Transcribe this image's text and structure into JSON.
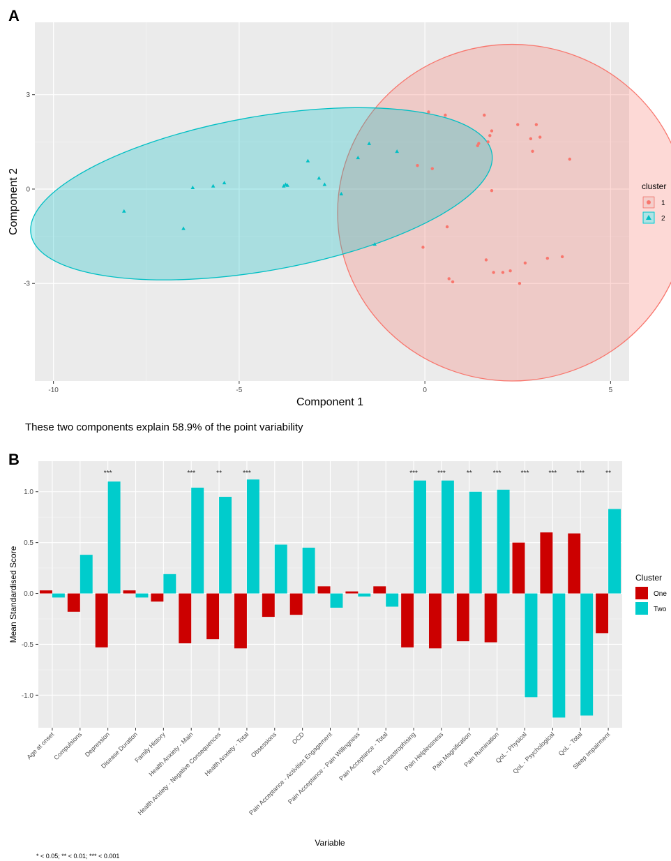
{
  "panel_a_letter": "A",
  "panel_b_letter": "B",
  "caption_a": "These two components explain 58.9% of the point variability",
  "footnote_b": "* < 0.05; ** < 0.01; *** < 0.001",
  "chart_data": [
    {
      "type": "scatter",
      "xlabel": "Component 1",
      "ylabel": "Component 2",
      "xlim": [
        -10.5,
        5.5
      ],
      "ylim": [
        -6.1,
        5.3
      ],
      "xticks": [
        -10,
        -5,
        0,
        5
      ],
      "xtick_labels": [
        "-10",
        "-5",
        "0",
        "5"
      ],
      "yticks": [
        -3,
        0,
        3
      ],
      "ytick_labels": [
        "-3",
        "0",
        "3"
      ],
      "grid": true,
      "legend": {
        "title": "cluster",
        "position": "right"
      },
      "series": [
        {
          "name": "1",
          "color": "#f8766d",
          "marker": "circle",
          "ellipse": {
            "cx": 2.35,
            "cy": -0.75,
            "rx": 4.7,
            "ry": 5.35,
            "angle": 0
          },
          "points": [
            [
              0.1,
              2.45
            ],
            [
              0.55,
              2.35
            ],
            [
              1.6,
              2.35
            ],
            [
              1.8,
              1.85
            ],
            [
              1.75,
              1.7
            ],
            [
              1.7,
              1.5
            ],
            [
              1.45,
              1.45
            ],
            [
              1.42,
              1.38
            ],
            [
              2.5,
              2.05
            ],
            [
              3.0,
              2.05
            ],
            [
              2.85,
              1.6
            ],
            [
              3.1,
              1.65
            ],
            [
              2.9,
              1.2
            ],
            [
              3.9,
              0.95
            ],
            [
              -0.2,
              0.75
            ],
            [
              0.2,
              0.65
            ],
            [
              1.8,
              -0.05
            ],
            [
              0.6,
              -1.2
            ],
            [
              -0.05,
              -1.85
            ],
            [
              1.65,
              -2.25
            ],
            [
              1.85,
              -2.65
            ],
            [
              2.1,
              -2.65
            ],
            [
              2.3,
              -2.6
            ],
            [
              2.7,
              -2.35
            ],
            [
              3.3,
              -2.2
            ],
            [
              3.7,
              -2.15
            ],
            [
              0.65,
              -2.85
            ],
            [
              0.75,
              -2.95
            ],
            [
              2.55,
              -3.0
            ]
          ]
        },
        {
          "name": "2",
          "color": "#00bfc4",
          "marker": "triangle",
          "ellipse": {
            "cx": -4.4,
            "cy": -0.15,
            "rx": 6.3,
            "ry": 2.45,
            "angle": -10
          },
          "points": [
            [
              -8.1,
              -0.7
            ],
            [
              -6.5,
              -1.25
            ],
            [
              -6.25,
              0.05
            ],
            [
              -5.7,
              0.1
            ],
            [
              -5.4,
              0.2
            ],
            [
              -3.75,
              0.15
            ],
            [
              -3.8,
              0.1
            ],
            [
              -3.7,
              0.12
            ],
            [
              -3.15,
              0.9
            ],
            [
              -2.85,
              0.35
            ],
            [
              -2.7,
              0.15
            ],
            [
              -2.25,
              -0.15
            ],
            [
              -1.8,
              1.0
            ],
            [
              -1.5,
              1.45
            ],
            [
              -0.75,
              1.2
            ],
            [
              -1.35,
              -1.75
            ]
          ]
        }
      ]
    },
    {
      "type": "bar",
      "xlabel": "Variable",
      "ylabel": "Mean Standardised Score",
      "ylim": [
        -1.32,
        1.3
      ],
      "yticks": [
        -1.0,
        -0.5,
        0.0,
        0.5,
        1.0
      ],
      "ytick_labels": [
        "-1.0",
        "-0.5",
        "0.0",
        "0.5",
        "1.0"
      ],
      "grid": true,
      "legend": {
        "title": "Cluster",
        "position": "right"
      },
      "categories": [
        "Age at onset",
        "Compulsions",
        "Depression",
        "Disease Duration",
        "Family History",
        "Health Anxiety - Main",
        "Health Anxiety - Negative Consequences",
        "Health Anxiety - Total",
        "Obsessions",
        "OCD",
        "Pain Acceptance - Activities Engagement",
        "Pain Acceptance - Pain Willingness",
        "Pain Acceptance - Total",
        "Pain Catastrophising",
        "Pain Helplessness",
        "Pain Magnification",
        "Pain Rumination",
        "QoL - Physical",
        "QoL - Psychological",
        "QoL - Total",
        "Sleep Impairment"
      ],
      "series": [
        {
          "name": "One",
          "color": "#cc0000",
          "values": [
            0.03,
            -0.18,
            -0.53,
            0.03,
            -0.08,
            -0.49,
            -0.45,
            -0.54,
            -0.23,
            -0.21,
            0.07,
            0.02,
            0.07,
            -0.53,
            -0.54,
            -0.47,
            -0.48,
            0.5,
            0.6,
            0.59,
            -0.39
          ]
        },
        {
          "name": "Two",
          "color": "#00cccc",
          "values": [
            -0.04,
            0.38,
            1.1,
            -0.04,
            0.19,
            1.04,
            0.95,
            1.12,
            0.48,
            0.45,
            -0.14,
            -0.03,
            -0.13,
            1.11,
            1.11,
            1.0,
            1.02,
            -1.02,
            -1.22,
            -1.2,
            0.83
          ]
        }
      ],
      "significance": [
        "",
        "",
        "***",
        "",
        "",
        "***",
        "**",
        "***",
        "",
        "",
        "",
        "",
        "",
        "***",
        "***",
        "**",
        "***",
        "***",
        "***",
        "***",
        "**"
      ]
    }
  ]
}
